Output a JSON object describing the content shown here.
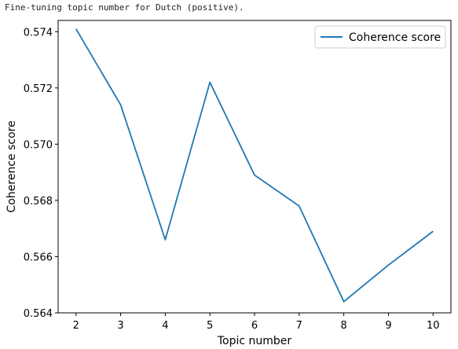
{
  "caption": "Fine-tuning topic number for Dutch (positive).",
  "chart_data": {
    "type": "line",
    "xlabel": "Topic number",
    "ylabel": "Coherence score",
    "x": [
      2,
      3,
      4,
      5,
      6,
      7,
      8,
      9,
      10
    ],
    "series": [
      {
        "name": "Coherence score",
        "color": "#1f77b4",
        "values": [
          0.5741,
          0.5714,
          0.5666,
          0.5722,
          0.5689,
          0.5678,
          0.5644,
          0.5657,
          0.5669
        ]
      }
    ],
    "xlim": [
      1.6,
      10.4
    ],
    "ylim": [
      0.564,
      0.5744
    ],
    "xticks": [
      "2",
      "3",
      "4",
      "5",
      "6",
      "7",
      "8",
      "9",
      "10"
    ],
    "yticks": [
      "0.564",
      "0.566",
      "0.568",
      "0.570",
      "0.572",
      "0.574"
    ],
    "grid": false,
    "legend": "upper right"
  }
}
